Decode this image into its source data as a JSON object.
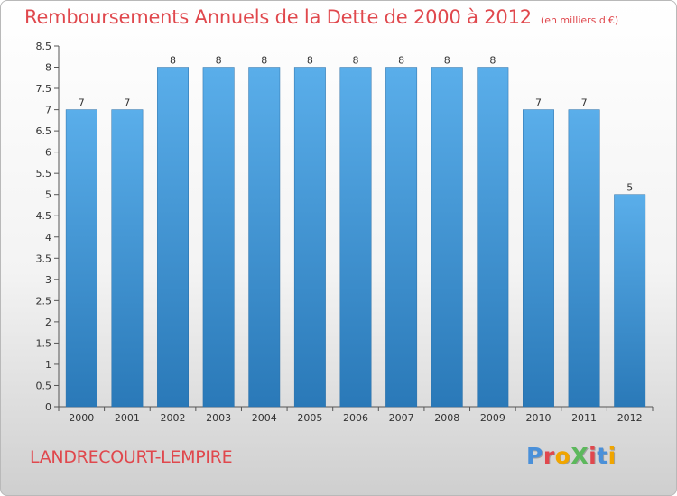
{
  "header": {
    "title": "Remboursements Annuels de la Dette de 2000 à 2012",
    "unit_note": "(en milliers d'€)"
  },
  "footer": {
    "commune": "LANDRECOURT-LEMPIRE",
    "logo_text": "ProXiti"
  },
  "colors": {
    "title": "#e0484d",
    "bar_top": "#5aaeea",
    "bar_bottom": "#2a79b8",
    "logo_letters": [
      "#4a90d9",
      "#e0484d",
      "#f0a500",
      "#5cb85c",
      "#e0484d",
      "#4a90d9",
      "#f0a500"
    ]
  },
  "chart_data": {
    "type": "bar",
    "categories": [
      "2000",
      "2001",
      "2002",
      "2003",
      "2004",
      "2005",
      "2006",
      "2007",
      "2008",
      "2009",
      "2010",
      "2011",
      "2012"
    ],
    "values": [
      7,
      7,
      8,
      8,
      8,
      8,
      8,
      8,
      8,
      8,
      7,
      7,
      5
    ],
    "data_labels": [
      "7",
      "7",
      "8",
      "8",
      "8",
      "8",
      "8",
      "8",
      "8",
      "8",
      "7",
      "7",
      "5"
    ],
    "y_ticks": [
      "0",
      "0.5",
      "1",
      "1.5",
      "2",
      "2.5",
      "3",
      "3.5",
      "4",
      "4.5",
      "5",
      "5.5",
      "6",
      "6.5",
      "7",
      "7.5",
      "8",
      "8.5"
    ],
    "ylim": [
      0,
      8.5
    ],
    "grid": false,
    "xlabel": "",
    "ylabel": ""
  }
}
